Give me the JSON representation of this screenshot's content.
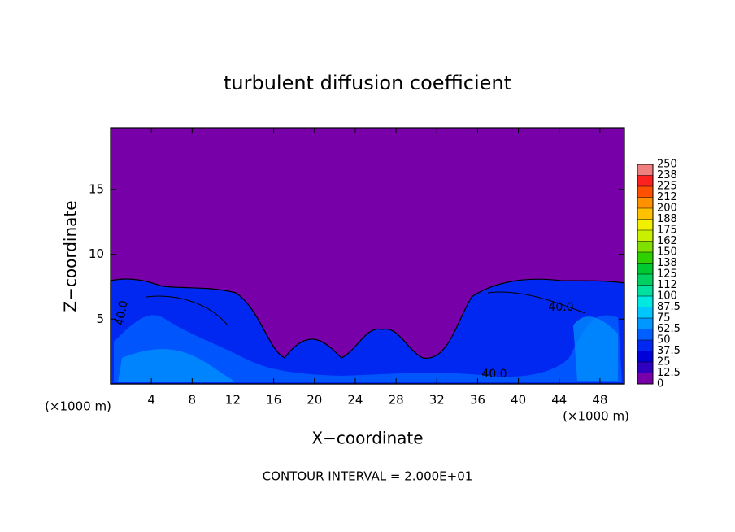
{
  "chart_data": {
    "type": "contour",
    "title": "turbulent diffusion coefficient",
    "x_label": "X−coordinate",
    "y_label": "Z−coordinate",
    "x_unit": "(×1000 m)",
    "xlim": [
      0,
      50.4
    ],
    "xticks": [
      4,
      8,
      12,
      16,
      20,
      24,
      28,
      32,
      36,
      40,
      44,
      48
    ],
    "ylim": [
      0,
      19.75
    ],
    "yticks": [
      5,
      10,
      15
    ],
    "contour_labels": [
      "40.0",
      "40.0",
      "40.0"
    ],
    "footer": "CONTOUR INTERVAL = 2.000E+01",
    "clim": [
      0,
      250
    ],
    "colorbar_ticks": [
      0,
      12.5,
      25,
      37.5,
      50,
      62.5,
      75,
      87.5,
      100,
      {
        "value": 112.5,
        "label": "112"
      },
      125,
      {
        "value": 137.5,
        "label": "138"
      },
      150,
      {
        "value": 162.5,
        "label": "162"
      },
      175,
      {
        "value": 187.5,
        "label": "188"
      },
      200,
      {
        "value": 212.5,
        "label": "212"
      },
      225,
      {
        "value": 237.5,
        "label": "238"
      },
      250
    ],
    "colorscale": [
      "#7800a8",
      "#3000c0",
      "#0000d8",
      "#0028f0",
      "#0060ff",
      "#0098ff",
      "#00c8ff",
      "#00e8e0",
      "#00e0a0",
      "#00d060",
      "#00c830",
      "#30d000",
      "#80e000",
      "#c8f000",
      "#f0f000",
      "#ffc000",
      "#ff9000",
      "#ff5000",
      "#ff2020",
      "#f08080"
    ]
  }
}
